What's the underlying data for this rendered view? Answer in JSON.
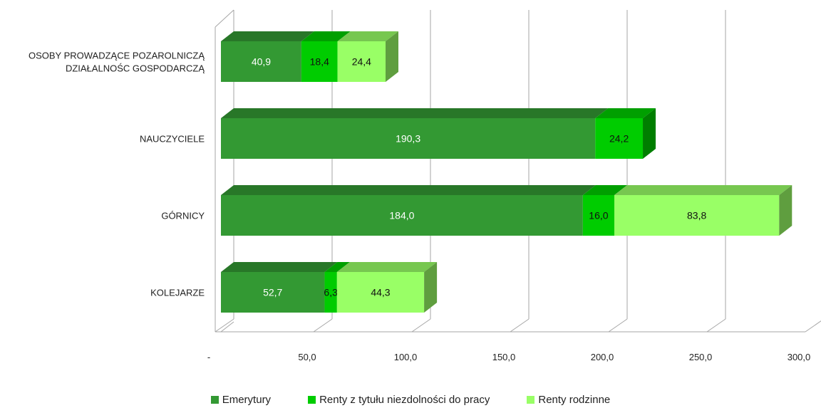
{
  "chart_data": {
    "type": "bar",
    "orientation": "horizontal",
    "stacked": true,
    "three_d": true,
    "title": "",
    "xlabel": "",
    "ylabel": "",
    "categories": [
      "OSOBY PROWADZĄCE POZAROLNICZĄ DZIAŁALNOŚC GOSPODARCZĄ",
      "NAUCZYCIELE",
      "GÓRNICY",
      "KOLEJARZE"
    ],
    "category_lines": [
      [
        "OSOBY PROWADZĄCE POZAROLNICZĄ",
        "DZIAŁALNOŚC GOSPODARCZĄ"
      ],
      [
        "NAUCZYCIELE"
      ],
      [
        "GÓRNICY"
      ],
      [
        "KOLEJARZE"
      ]
    ],
    "series": [
      {
        "name": "Emerytury",
        "values": [
          40.9,
          190.3,
          184.0,
          52.7
        ],
        "labels": [
          "40,9",
          "190,3",
          "184,0",
          "52,7"
        ],
        "color": "#339933",
        "label_color": "#ffffff"
      },
      {
        "name": "Renty z tytułu niezdolności do pracy",
        "values": [
          18.4,
          24.2,
          16.0,
          6.3
        ],
        "labels": [
          "18,4",
          "24,2",
          "16,0",
          "6,3"
        ],
        "color": "#00cc00",
        "label_color": "#111111"
      },
      {
        "name": "Renty rodzinne",
        "values": [
          24.4,
          null,
          83.8,
          44.3
        ],
        "labels": [
          "24,4",
          "",
          "83,8",
          "44,3"
        ],
        "color": "#99ff66",
        "label_color": "#111111"
      }
    ],
    "xlim": [
      0,
      300
    ],
    "x_ticks": [
      0,
      50,
      100,
      150,
      200,
      250,
      300
    ],
    "x_tick_labels": [
      "-",
      "50,0",
      "100,0",
      "150,0",
      "200,0",
      "250,0",
      "300,0"
    ],
    "grid": true,
    "legend_position": "bottom"
  }
}
